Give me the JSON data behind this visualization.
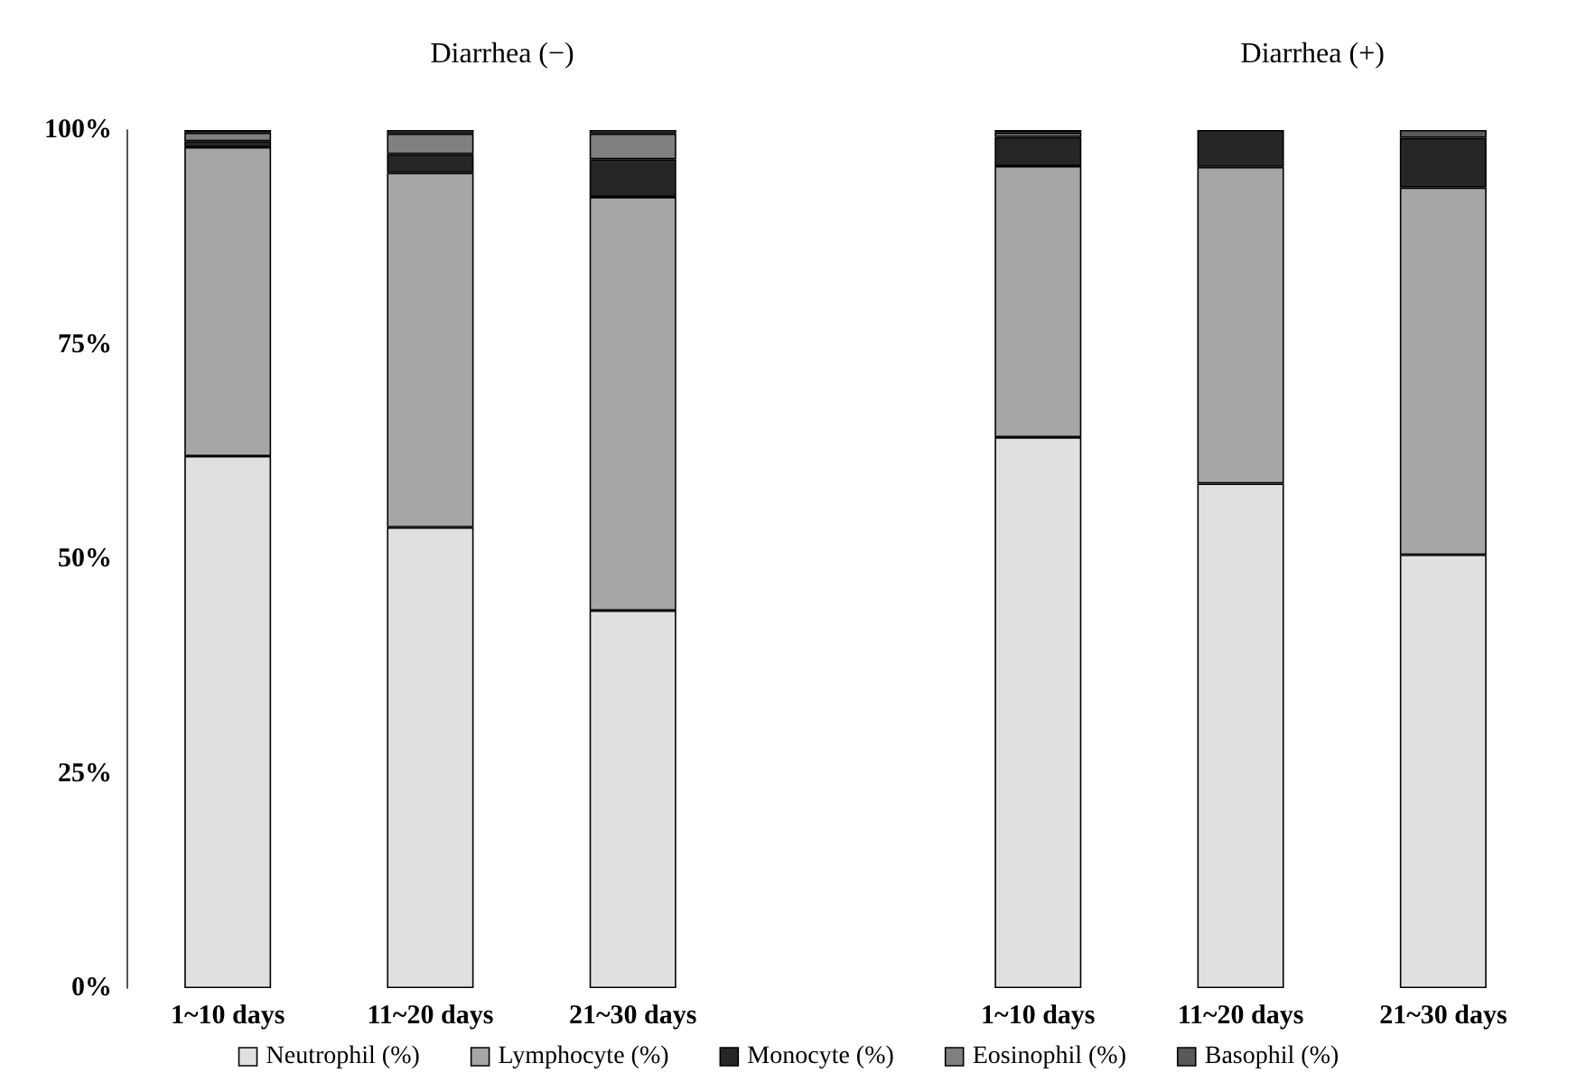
{
  "chart_data": {
    "type": "bar",
    "stacked": true,
    "categories": [
      "1~10 days",
      "11~20 days",
      "21~30 days",
      null,
      "1~10 days",
      "11~20 days",
      "21~30 days"
    ],
    "series": [
      {
        "name": "Neutrophil (%)",
        "color": "#e0e0e0",
        "values": [
          62,
          53.7,
          44,
          null,
          64.2,
          58.8,
          50.5
        ]
      },
      {
        "name": "Lymphocyte (%)",
        "color": "#a6a6a6",
        "values": [
          36,
          41.3,
          48.2,
          null,
          31.6,
          36.9,
          42.8
        ]
      },
      {
        "name": "Monocyte (%)",
        "color": "#262626",
        "values": [
          0.7,
          2.2,
          4.4,
          null,
          3.4,
          4.3,
          5.8
        ]
      },
      {
        "name": "Eosinophil (%)",
        "color": "#808080",
        "values": [
          1,
          2.4,
          3,
          null,
          0.5,
          0,
          0
        ]
      },
      {
        "name": "Basophil (%)",
        "color": "#595959",
        "values": [
          0.3,
          0.4,
          0.4,
          null,
          0.3,
          0,
          0.9
        ]
      }
    ],
    "annotations": [
      "Diarrhea (−)",
      "Diarrhea (+)"
    ],
    "ylim": [
      0,
      100
    ],
    "yticks": [
      {
        "value": 0,
        "label": "0%"
      },
      {
        "value": 25,
        "label": "25%"
      },
      {
        "value": 50,
        "label": "50%"
      },
      {
        "value": 75,
        "label": "75%"
      },
      {
        "value": 100,
        "label": "100%"
      }
    ],
    "grid": false,
    "legend": "bottom"
  }
}
